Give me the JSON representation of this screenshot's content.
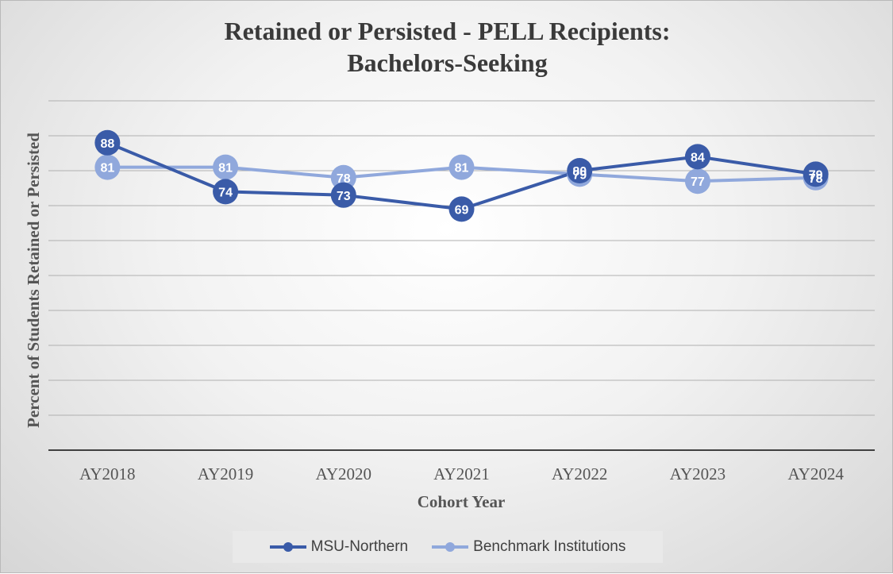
{
  "chart_data": {
    "type": "line",
    "title": [
      "Retained or Persisted - PELL Recipients:",
      "Bachelors-Seeking"
    ],
    "xlabel": "Cohort Year",
    "ylabel": "Percent of Students Retained or Persisted",
    "categories": [
      "AY2018",
      "AY2019",
      "AY2020",
      "AY2021",
      "AY2022",
      "AY2023",
      "AY2024"
    ],
    "ylim": [
      0,
      100
    ],
    "ytick_step": 10,
    "grid": true,
    "legend_position": "bottom",
    "series": [
      {
        "name": "MSU-Northern",
        "values": [
          88,
          74,
          73,
          69,
          80,
          84,
          79
        ],
        "color": "#3a5ba8",
        "label_offset": "center"
      },
      {
        "name": "Benchmark Institutions",
        "values": [
          81,
          81,
          78,
          81,
          79,
          77,
          78
        ],
        "color": "#90a8dc",
        "label_offset": "center"
      }
    ]
  }
}
